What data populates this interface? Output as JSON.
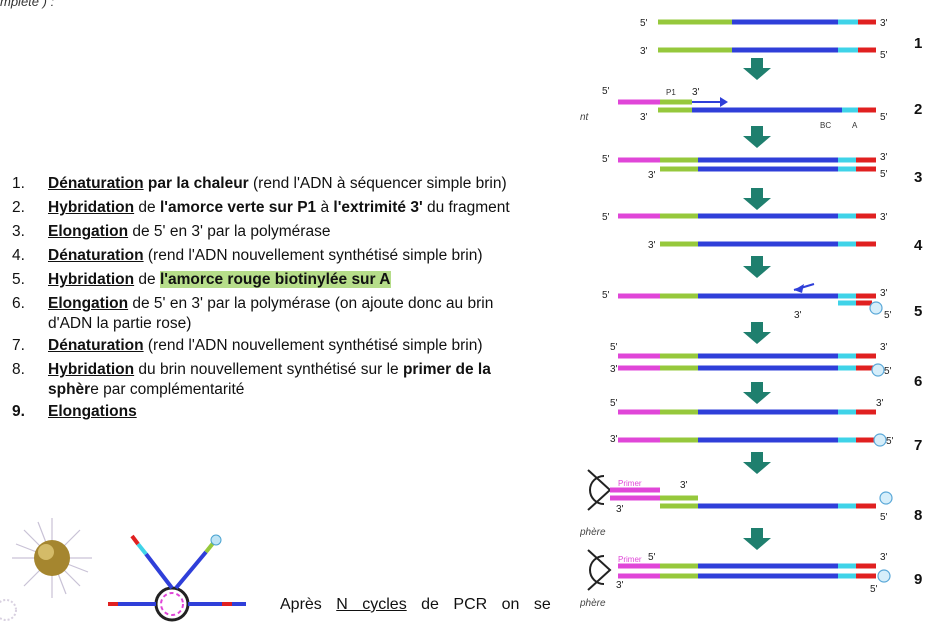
{
  "top_fragment": "mplète ) :",
  "steps": [
    {
      "n": "1.",
      "u": "Dénaturation",
      "b": "par la chaleur",
      "t": " (rend l'ADN à séquencer simple brin)"
    },
    {
      "n": "2.",
      "u": "Hybridation",
      "t1": " de ",
      "b": "l'amorce verte sur P1",
      "t2": " à ",
      "b2": "l'extrimité 3'",
      "t3": " du fragment"
    },
    {
      "n": "3.",
      "u": "Elongation",
      "t": " de 5' en 3' par la polymérase"
    },
    {
      "n": "4.",
      "u": "Dénaturation",
      "t": " (rend l'ADN nouvellement synthétisé simple brin)"
    },
    {
      "n": "5.",
      "u": "Hybridation",
      "t": " de ",
      "hl": "l'amorce rouge biotinylée sur A"
    },
    {
      "n": "6.",
      "u": "Elongation",
      "t": " de 5' en 3' par la polymérase (on ajoute donc au brin",
      "cont": "d'ADN la partie rose)"
    },
    {
      "n": "7.",
      "u": "Dénaturation",
      "t": " (rend l'ADN nouvellement synthétisé simple brin)"
    },
    {
      "n": "8.",
      "u": "Hybridation",
      "t1": " du brin nouvellement synthétisé sur le ",
      "b": "primer de la",
      "cont_b": "sphèr",
      "cont": "e par complémentarité"
    },
    {
      "n": "9.",
      "u": "Elongations"
    }
  ],
  "bottom": {
    "pre": "Après",
    "u": "N cycles",
    "post": "de PCR on se"
  },
  "diagram": {
    "labels": [
      "1",
      "2",
      "3",
      "4",
      "5",
      "6",
      "7",
      "8",
      "9"
    ],
    "p1": "P1",
    "bc": "BC",
    "a": "A",
    "primer": "Primer",
    "sphere": "phère",
    "nt": "nt",
    "five": "5'",
    "three": "3'"
  },
  "colors": {
    "blue": "#2f3fd9",
    "green": "#96c83c",
    "red": "#e02020",
    "cyan": "#3fd3e8",
    "pink": "#e046d8",
    "arrow": "#1f7f6e",
    "highlight": "#b6dd8a"
  }
}
